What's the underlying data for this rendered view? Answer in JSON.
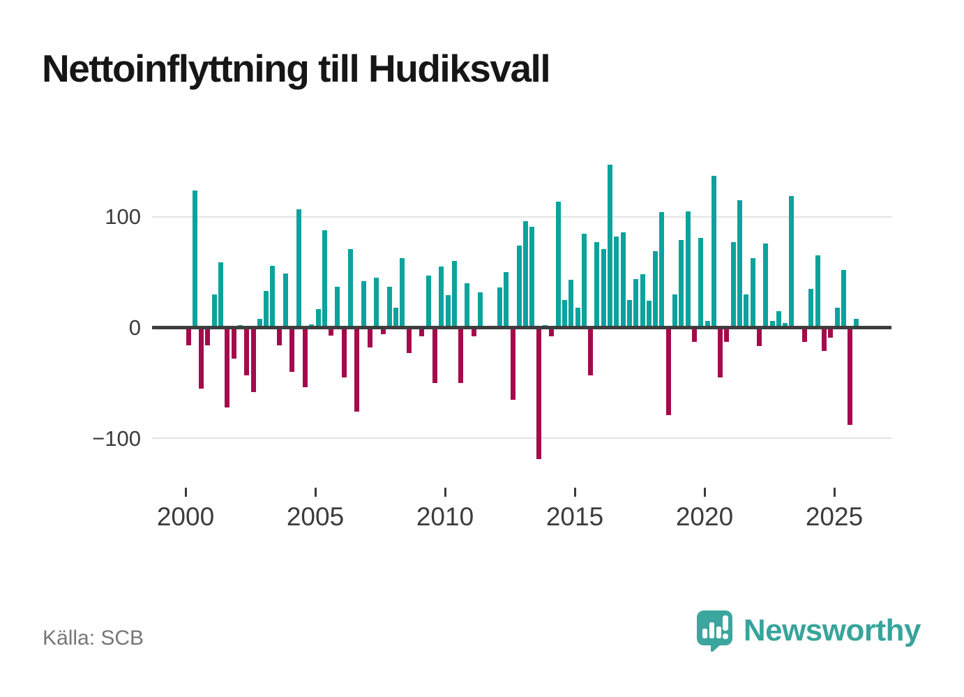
{
  "title": "Nettoinflyttning till Hudiksvall",
  "footer": {
    "source": "Källa: SCB",
    "brand_name": "Newsworthy"
  },
  "icons": {
    "brand_icon": "speech-bubble-bar-chart-exclamation-icon"
  },
  "colors": {
    "positive_bar": "#0ca39d",
    "negative_bar": "#a40a4c",
    "gridline": "#e3e3e3",
    "zero_line": "#3e3e3e",
    "title_text": "#161616",
    "axis_text": "#3b3b3b",
    "source_text": "#767676",
    "brand": "#38a49b"
  },
  "chart_data": {
    "type": "bar",
    "title": "Nettoinflyttning till Hudiksvall",
    "frequency": "quarterly",
    "start": "2000Q1",
    "end": "2025Q4",
    "grid": "horizontal",
    "legend_position": "none",
    "ylim": [
      -130,
      155
    ],
    "y_axis": {
      "ticks": [
        {
          "value": 100,
          "label": "100"
        },
        {
          "value": 0,
          "label": "0"
        },
        {
          "value": -100,
          "label": "−100"
        }
      ]
    },
    "x_axis": {
      "tick_years": [
        2000,
        2005,
        2010,
        2015,
        2020,
        2025
      ],
      "tick_labels": [
        "2000",
        "2005",
        "2010",
        "2015",
        "2020",
        "2025"
      ]
    },
    "series": [
      {
        "year": 2000,
        "values": [
          -16,
          124,
          -55,
          -16
        ]
      },
      {
        "year": 2001,
        "values": [
          30,
          59,
          -72,
          -28
        ]
      },
      {
        "year": 2002,
        "values": [
          2,
          -43,
          -58,
          8
        ]
      },
      {
        "year": 2003,
        "values": [
          33,
          56,
          -16,
          49
        ]
      },
      {
        "year": 2004,
        "values": [
          -40,
          107,
          -54,
          3
        ]
      },
      {
        "year": 2005,
        "values": [
          17,
          88,
          -7,
          37
        ]
      },
      {
        "year": 2006,
        "values": [
          -45,
          71,
          -76,
          42
        ]
      },
      {
        "year": 2007,
        "values": [
          -18,
          45,
          -6,
          37
        ]
      },
      {
        "year": 2008,
        "values": [
          18,
          63,
          -23,
          0
        ]
      },
      {
        "year": 2009,
        "values": [
          -8,
          47,
          -50,
          55
        ]
      },
      {
        "year": 2010,
        "values": [
          29,
          60,
          -50,
          40
        ]
      },
      {
        "year": 2011,
        "values": [
          -8,
          32,
          0,
          0
        ]
      },
      {
        "year": 2012,
        "values": [
          36,
          50,
          -65,
          74
        ]
      },
      {
        "year": 2013,
        "values": [
          96,
          91,
          -119,
          2
        ]
      },
      {
        "year": 2014,
        "values": [
          -8,
          114,
          25,
          43
        ]
      },
      {
        "year": 2015,
        "values": [
          18,
          85,
          -43,
          77
        ]
      },
      {
        "year": 2016,
        "values": [
          71,
          147,
          82,
          86
        ]
      },
      {
        "year": 2017,
        "values": [
          25,
          44,
          48,
          24
        ]
      },
      {
        "year": 2018,
        "values": [
          69,
          104,
          -79,
          30
        ]
      },
      {
        "year": 2019,
        "values": [
          79,
          105,
          -13,
          81
        ]
      },
      {
        "year": 2020,
        "values": [
          6,
          137,
          -45,
          -13
        ]
      },
      {
        "year": 2021,
        "values": [
          77,
          115,
          30,
          63
        ]
      },
      {
        "year": 2022,
        "values": [
          -17,
          76,
          6,
          15
        ]
      },
      {
        "year": 2023,
        "values": [
          4,
          119,
          0,
          -13
        ]
      },
      {
        "year": 2024,
        "values": [
          35,
          65,
          -21,
          -9
        ]
      },
      {
        "year": 2025,
        "values": [
          18,
          52,
          -88,
          8
        ]
      }
    ]
  }
}
